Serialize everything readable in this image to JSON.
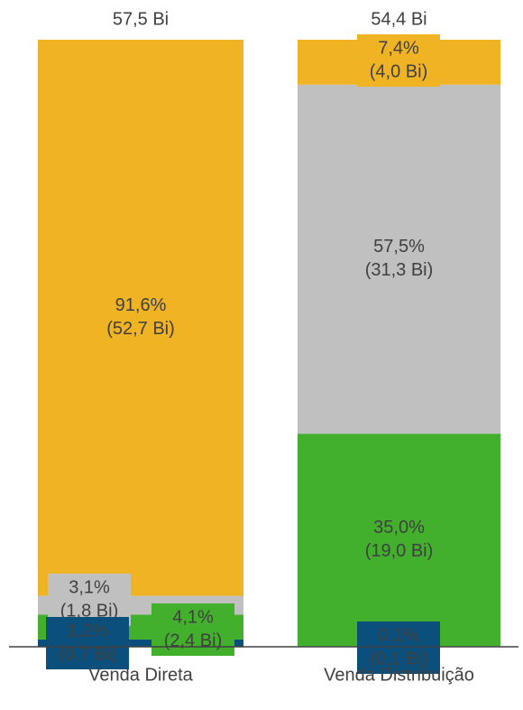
{
  "chart_data": {
    "type": "stacked_bar_100",
    "categories": [
      "Venda Direta",
      "Venda Distribuição"
    ],
    "total_labels": [
      "57,5 Bi",
      "54,4 Bi"
    ],
    "ylim": [
      0,
      100
    ],
    "series": [
      {
        "color": "#0b4f7c",
        "values": [
          1.2,
          0.1
        ],
        "value_labels": [
          "1,2%",
          "0,1%"
        ],
        "amount_labels": [
          "(0,7 Bi)",
          "(0,1 Bi)"
        ]
      },
      {
        "color": "#42b02c",
        "values": [
          4.1,
          35.0
        ],
        "value_labels": [
          "4,1%",
          "35,0%"
        ],
        "amount_labels": [
          "(2,4 Bi)",
          "(19,0 Bi)"
        ]
      },
      {
        "color": "#c0c0c0",
        "values": [
          3.1,
          57.5
        ],
        "value_labels": [
          "3,1%",
          "57,5%"
        ],
        "amount_labels": [
          "(1,8 Bi)",
          "(31,3 Bi)"
        ]
      },
      {
        "color": "#f0b323",
        "values": [
          91.6,
          7.4
        ],
        "value_labels": [
          "91,6%",
          "7,4%"
        ],
        "amount_labels": [
          "(52,7 Bi)",
          "(4,0 Bi)"
        ]
      }
    ]
  }
}
